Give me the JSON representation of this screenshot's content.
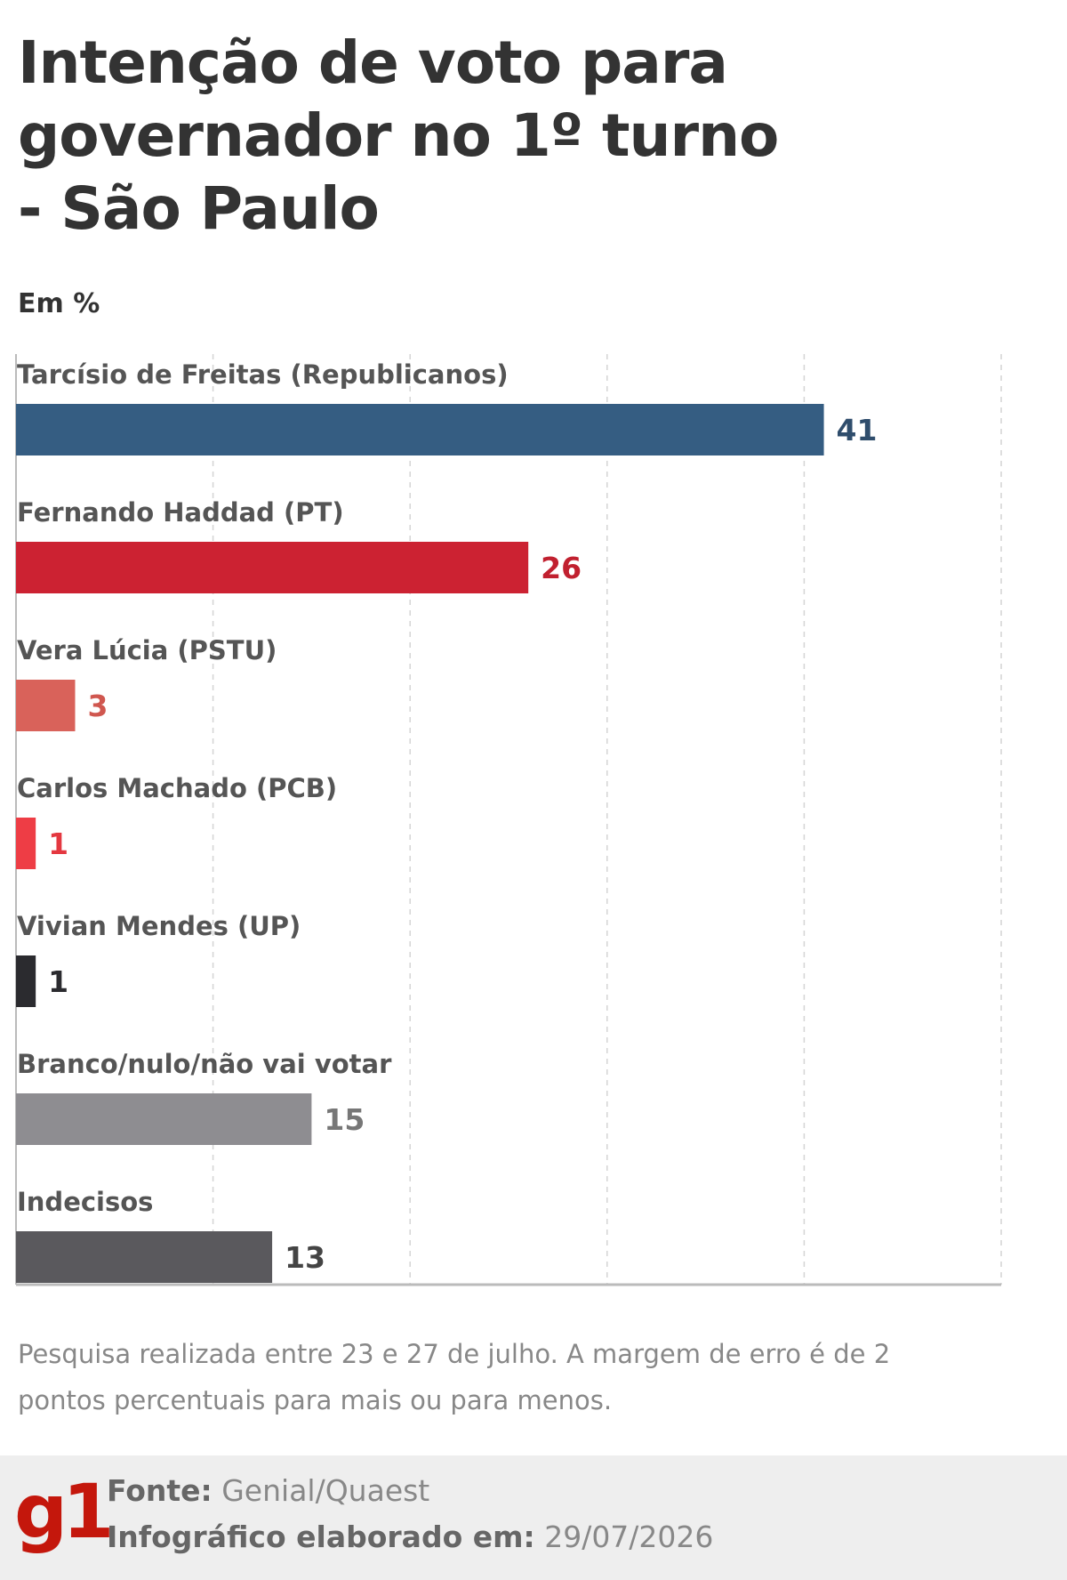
{
  "chart_data": {
    "type": "bar",
    "orientation": "horizontal",
    "title": "Intenção de voto para governador no 1º turno - São Paulo",
    "subtitle": "Em %",
    "categories": [
      "Tarcísio de Freitas (Republicanos)",
      "Fernando Haddad (PT)",
      "Vera Lúcia (PSTU)",
      "Carlos Machado (PCB)",
      "Vivian Mendes (UP)",
      "Branco/nulo/não vai votar",
      "Indecisos"
    ],
    "values": [
      41,
      26,
      3,
      1,
      1,
      15,
      13
    ],
    "value_labels": [
      "41",
      "26",
      "3",
      "1",
      "1",
      "15",
      "13"
    ],
    "colors": [
      "#355d82",
      "#cc2232",
      "#d9625a",
      "#ee3d45",
      "#2b2b2f",
      "#8e8d91",
      "#5a595d"
    ],
    "label_colors": [
      "#2f4d6c",
      "#c1202f",
      "#d0574f",
      "#e43840",
      "#2b2b2f",
      "#777777",
      "#444444"
    ],
    "xlim": [
      0,
      50
    ],
    "grid": true
  },
  "note": "Pesquisa realizada entre 23 e 27 de julho. A margem de erro é de 2 pontos percentuais para mais ou para menos.",
  "footer": {
    "logo": "g1",
    "source_label": "Fonte:",
    "source_value": "Genial/Quaest",
    "date_label": "Infográfico elaborado em:",
    "date_value": "29/07/2026"
  }
}
